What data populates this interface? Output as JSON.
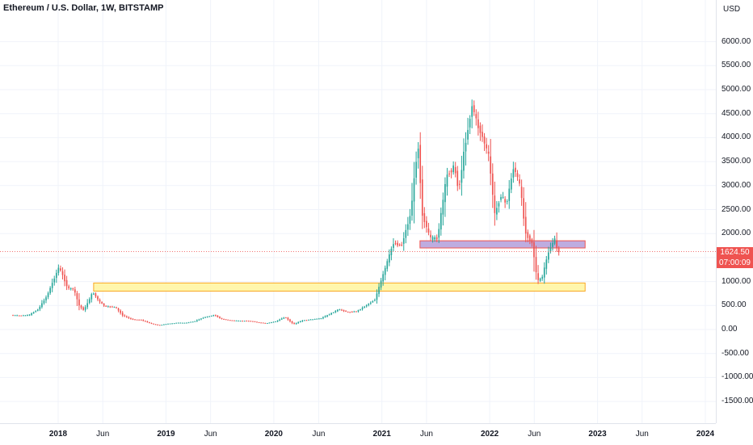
{
  "title": "Ethereum / U.S. Dollar, 1W, BITSTAMP",
  "colors": {
    "up": "#26a69a",
    "down": "#ef5350",
    "yellow_zone_fill": "#fff59d",
    "yellow_zone_border": "#f9a825",
    "purple_zone_fill": "#b39ddb",
    "purple_zone_border": "#ef5350",
    "grid": "#f0f3fa"
  },
  "price_tag": {
    "price": "1624.50",
    "countdown": "07:00:09"
  },
  "chart_data": {
    "type": "candlestick",
    "title": "Ethereum / U.S. Dollar, 1W, BITSTAMP",
    "y_unit": "USD",
    "ylim": [
      -1800,
      6500
    ],
    "y_ticks": [
      "6000.00",
      "5500.00",
      "5000.00",
      "4500.00",
      "4000.00",
      "3500.00",
      "3000.00",
      "2500.00",
      "2000.00",
      "1500.00",
      "1000.00",
      "500.00",
      "0.00",
      "-500.00",
      "-1000.00",
      "-1500.00"
    ],
    "x_ticks": [
      {
        "label": "2018",
        "date": "2018-01-01",
        "major": true
      },
      {
        "label": "Jun",
        "date": "2018-06-01",
        "major": false
      },
      {
        "label": "2019",
        "date": "2019-01-01",
        "major": true
      },
      {
        "label": "Jun",
        "date": "2019-06-01",
        "major": false
      },
      {
        "label": "2020",
        "date": "2020-01-01",
        "major": true
      },
      {
        "label": "Jun",
        "date": "2020-06-01",
        "major": false
      },
      {
        "label": "2021",
        "date": "2021-01-01",
        "major": true
      },
      {
        "label": "Jun",
        "date": "2021-06-01",
        "major": false
      },
      {
        "label": "2022",
        "date": "2022-01-01",
        "major": true
      },
      {
        "label": "Jun",
        "date": "2022-06-01",
        "major": false
      },
      {
        "label": "2023",
        "date": "2023-01-01",
        "major": true
      },
      {
        "label": "Jun",
        "date": "2023-06-01",
        "major": false
      },
      {
        "label": "2024",
        "date": "2024-01-01",
        "major": true
      }
    ],
    "price_path": [
      [
        "2017-08-01",
        300
      ],
      [
        "2017-09-01",
        290
      ],
      [
        "2017-10-01",
        300
      ],
      [
        "2017-11-01",
        420
      ],
      [
        "2017-12-01",
        700
      ],
      [
        "2018-01-10",
        1300
      ],
      [
        "2018-01-25",
        1100
      ],
      [
        "2018-02-10",
        850
      ],
      [
        "2018-03-01",
        850
      ],
      [
        "2018-03-20",
        500
      ],
      [
        "2018-04-05",
        400
      ],
      [
        "2018-04-25",
        650
      ],
      [
        "2018-05-05",
        780
      ],
      [
        "2018-05-25",
        600
      ],
      [
        "2018-06-15",
        480
      ],
      [
        "2018-07-20",
        470
      ],
      [
        "2018-08-15",
        290
      ],
      [
        "2018-09-15",
        210
      ],
      [
        "2018-10-15",
        200
      ],
      [
        "2018-11-20",
        120
      ],
      [
        "2018-12-15",
        90
      ],
      [
        "2019-01-15",
        120
      ],
      [
        "2019-02-15",
        140
      ],
      [
        "2019-03-15",
        140
      ],
      [
        "2019-04-15",
        170
      ],
      [
        "2019-05-15",
        250
      ],
      [
        "2019-06-20",
        300
      ],
      [
        "2019-07-15",
        220
      ],
      [
        "2019-08-15",
        190
      ],
      [
        "2019-09-15",
        180
      ],
      [
        "2019-10-15",
        180
      ],
      [
        "2019-11-15",
        150
      ],
      [
        "2019-12-15",
        130
      ],
      [
        "2020-01-15",
        170
      ],
      [
        "2020-02-15",
        260
      ],
      [
        "2020-03-15",
        110
      ],
      [
        "2020-04-15",
        190
      ],
      [
        "2020-05-15",
        210
      ],
      [
        "2020-06-15",
        230
      ],
      [
        "2020-07-15",
        320
      ],
      [
        "2020-08-15",
        420
      ],
      [
        "2020-09-15",
        360
      ],
      [
        "2020-10-15",
        380
      ],
      [
        "2020-11-15",
        500
      ],
      [
        "2020-12-15",
        620
      ],
      [
        "2021-01-15",
        1200
      ],
      [
        "2021-02-15",
        1800
      ],
      [
        "2021-03-15",
        1750
      ],
      [
        "2021-04-15",
        2400
      ],
      [
        "2021-05-10",
        3900
      ],
      [
        "2021-05-25",
        2400
      ],
      [
        "2021-06-20",
        1900
      ],
      [
        "2021-07-15",
        1900
      ],
      [
        "2021-08-15",
        3200
      ],
      [
        "2021-09-10",
        3400
      ],
      [
        "2021-09-25",
        2900
      ],
      [
        "2021-10-15",
        3800
      ],
      [
        "2021-11-10",
        4700
      ],
      [
        "2021-11-25",
        4300
      ],
      [
        "2021-12-15",
        4000
      ],
      [
        "2022-01-05",
        3600
      ],
      [
        "2022-01-25",
        2400
      ],
      [
        "2022-02-15",
        2800
      ],
      [
        "2022-03-05",
        2600
      ],
      [
        "2022-03-30",
        3400
      ],
      [
        "2022-04-20",
        3000
      ],
      [
        "2022-05-10",
        2000
      ],
      [
        "2022-06-01",
        1800
      ],
      [
        "2022-06-18",
        1000
      ],
      [
        "2022-07-05",
        1100
      ],
      [
        "2022-07-25",
        1600
      ],
      [
        "2022-08-15",
        1900
      ],
      [
        "2022-08-25",
        1624.5
      ]
    ],
    "zones": [
      {
        "name": "yellow",
        "from": "2018-05-01",
        "to": "2022-11-20",
        "low": 800,
        "high": 970
      },
      {
        "name": "purple",
        "from": "2021-05-10",
        "to": "2022-11-20",
        "low": 1700,
        "high": 1850
      }
    ],
    "current_price": 1624.5
  }
}
